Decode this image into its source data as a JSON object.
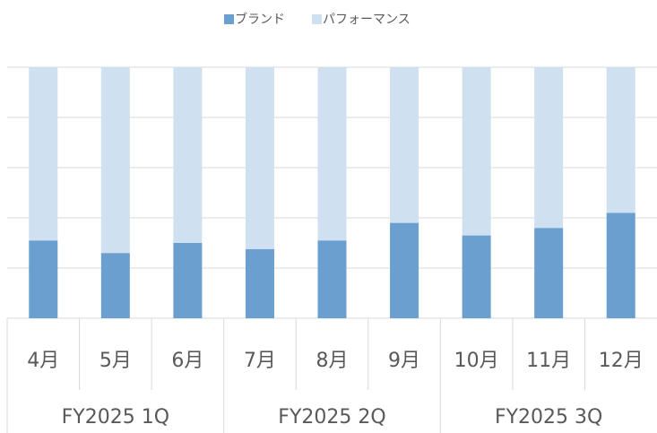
{
  "chart_data": {
    "type": "stacked_bar",
    "categories": [
      "4月",
      "5月",
      "6月",
      "7月",
      "8月",
      "9月",
      "10月",
      "11月",
      "12月"
    ],
    "groups": [
      {
        "label": "FY2025 1Q",
        "span": 3
      },
      {
        "label": "FY2025 2Q",
        "span": 3
      },
      {
        "label": "FY2025 3Q",
        "span": 3
      }
    ],
    "series": [
      {
        "name": "ブランド",
        "color": "#6a9fcf",
        "values": [
          31,
          26,
          30,
          27.5,
          31,
          38,
          33,
          36,
          42
        ]
      },
      {
        "name": "パフォーマンス",
        "color": "#cfe0f1",
        "values": [
          69,
          74,
          70,
          72.5,
          69,
          62,
          67,
          64,
          58
        ]
      }
    ],
    "ylim": [
      0,
      100
    ],
    "yticks": [
      0,
      20,
      40,
      60,
      80,
      100
    ],
    "grid": true,
    "legend": "top"
  }
}
